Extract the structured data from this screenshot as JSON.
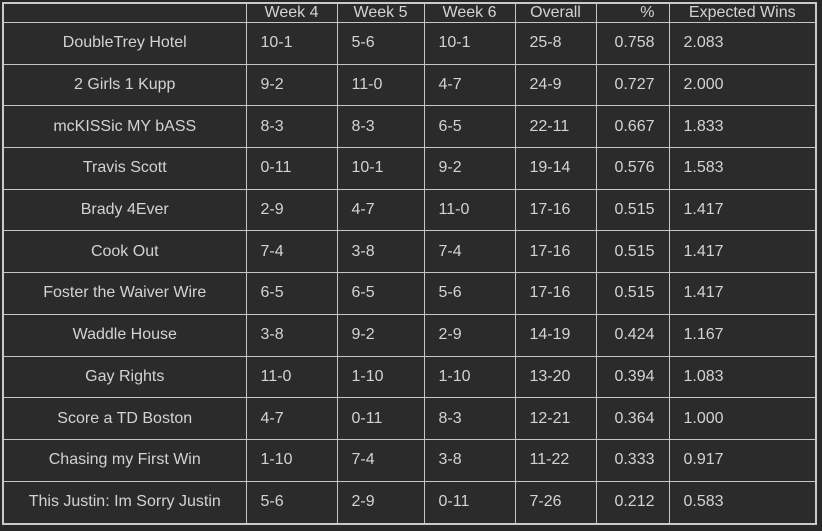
{
  "colors": {
    "background": "#2b2b2b",
    "grid_border": "#c9c9c9",
    "text": "#d3d3d3"
  },
  "chart_data": {
    "type": "table",
    "columns": [
      "",
      "Week 4",
      "Week 5",
      "Week 6",
      "Overall",
      "%",
      "Expected Wins"
    ],
    "column_alignments": [
      "center",
      "left",
      "left",
      "left",
      "left",
      "right",
      "left"
    ],
    "rows": [
      [
        "DoubleTrey Hotel",
        "10-1",
        "5-6",
        "10-1",
        "25-8",
        "0.758",
        "2.083"
      ],
      [
        "2 Girls 1 Kupp",
        "9-2",
        "11-0",
        "4-7",
        "24-9",
        "0.727",
        "2.000"
      ],
      [
        "mcKISSic MY bASS",
        "8-3",
        "8-3",
        "6-5",
        "22-11",
        "0.667",
        "1.833"
      ],
      [
        "Travis Scott",
        "0-11",
        "10-1",
        "9-2",
        "19-14",
        "0.576",
        "1.583"
      ],
      [
        "Brady 4Ever",
        "2-9",
        "4-7",
        "11-0",
        "17-16",
        "0.515",
        "1.417"
      ],
      [
        "Cook Out",
        "7-4",
        "3-8",
        "7-4",
        "17-16",
        "0.515",
        "1.417"
      ],
      [
        "Foster the Waiver Wire",
        "6-5",
        "6-5",
        "5-6",
        "17-16",
        "0.515",
        "1.417"
      ],
      [
        "Waddle House",
        "3-8",
        "9-2",
        "2-9",
        "14-19",
        "0.424",
        "1.167"
      ],
      [
        "Gay Rights",
        "11-0",
        "1-10",
        "1-10",
        "13-20",
        "0.394",
        "1.083"
      ],
      [
        "Score a TD Boston",
        "4-7",
        "0-11",
        "8-3",
        "12-21",
        "0.364",
        "1.000"
      ],
      [
        "Chasing my First Win",
        "1-10",
        "7-4",
        "3-8",
        "11-22",
        "0.333",
        "0.917"
      ],
      [
        "This Justin: Im Sorry Justin",
        "5-6",
        "2-9",
        "0-11",
        "7-26",
        "0.212",
        "0.583"
      ]
    ]
  }
}
